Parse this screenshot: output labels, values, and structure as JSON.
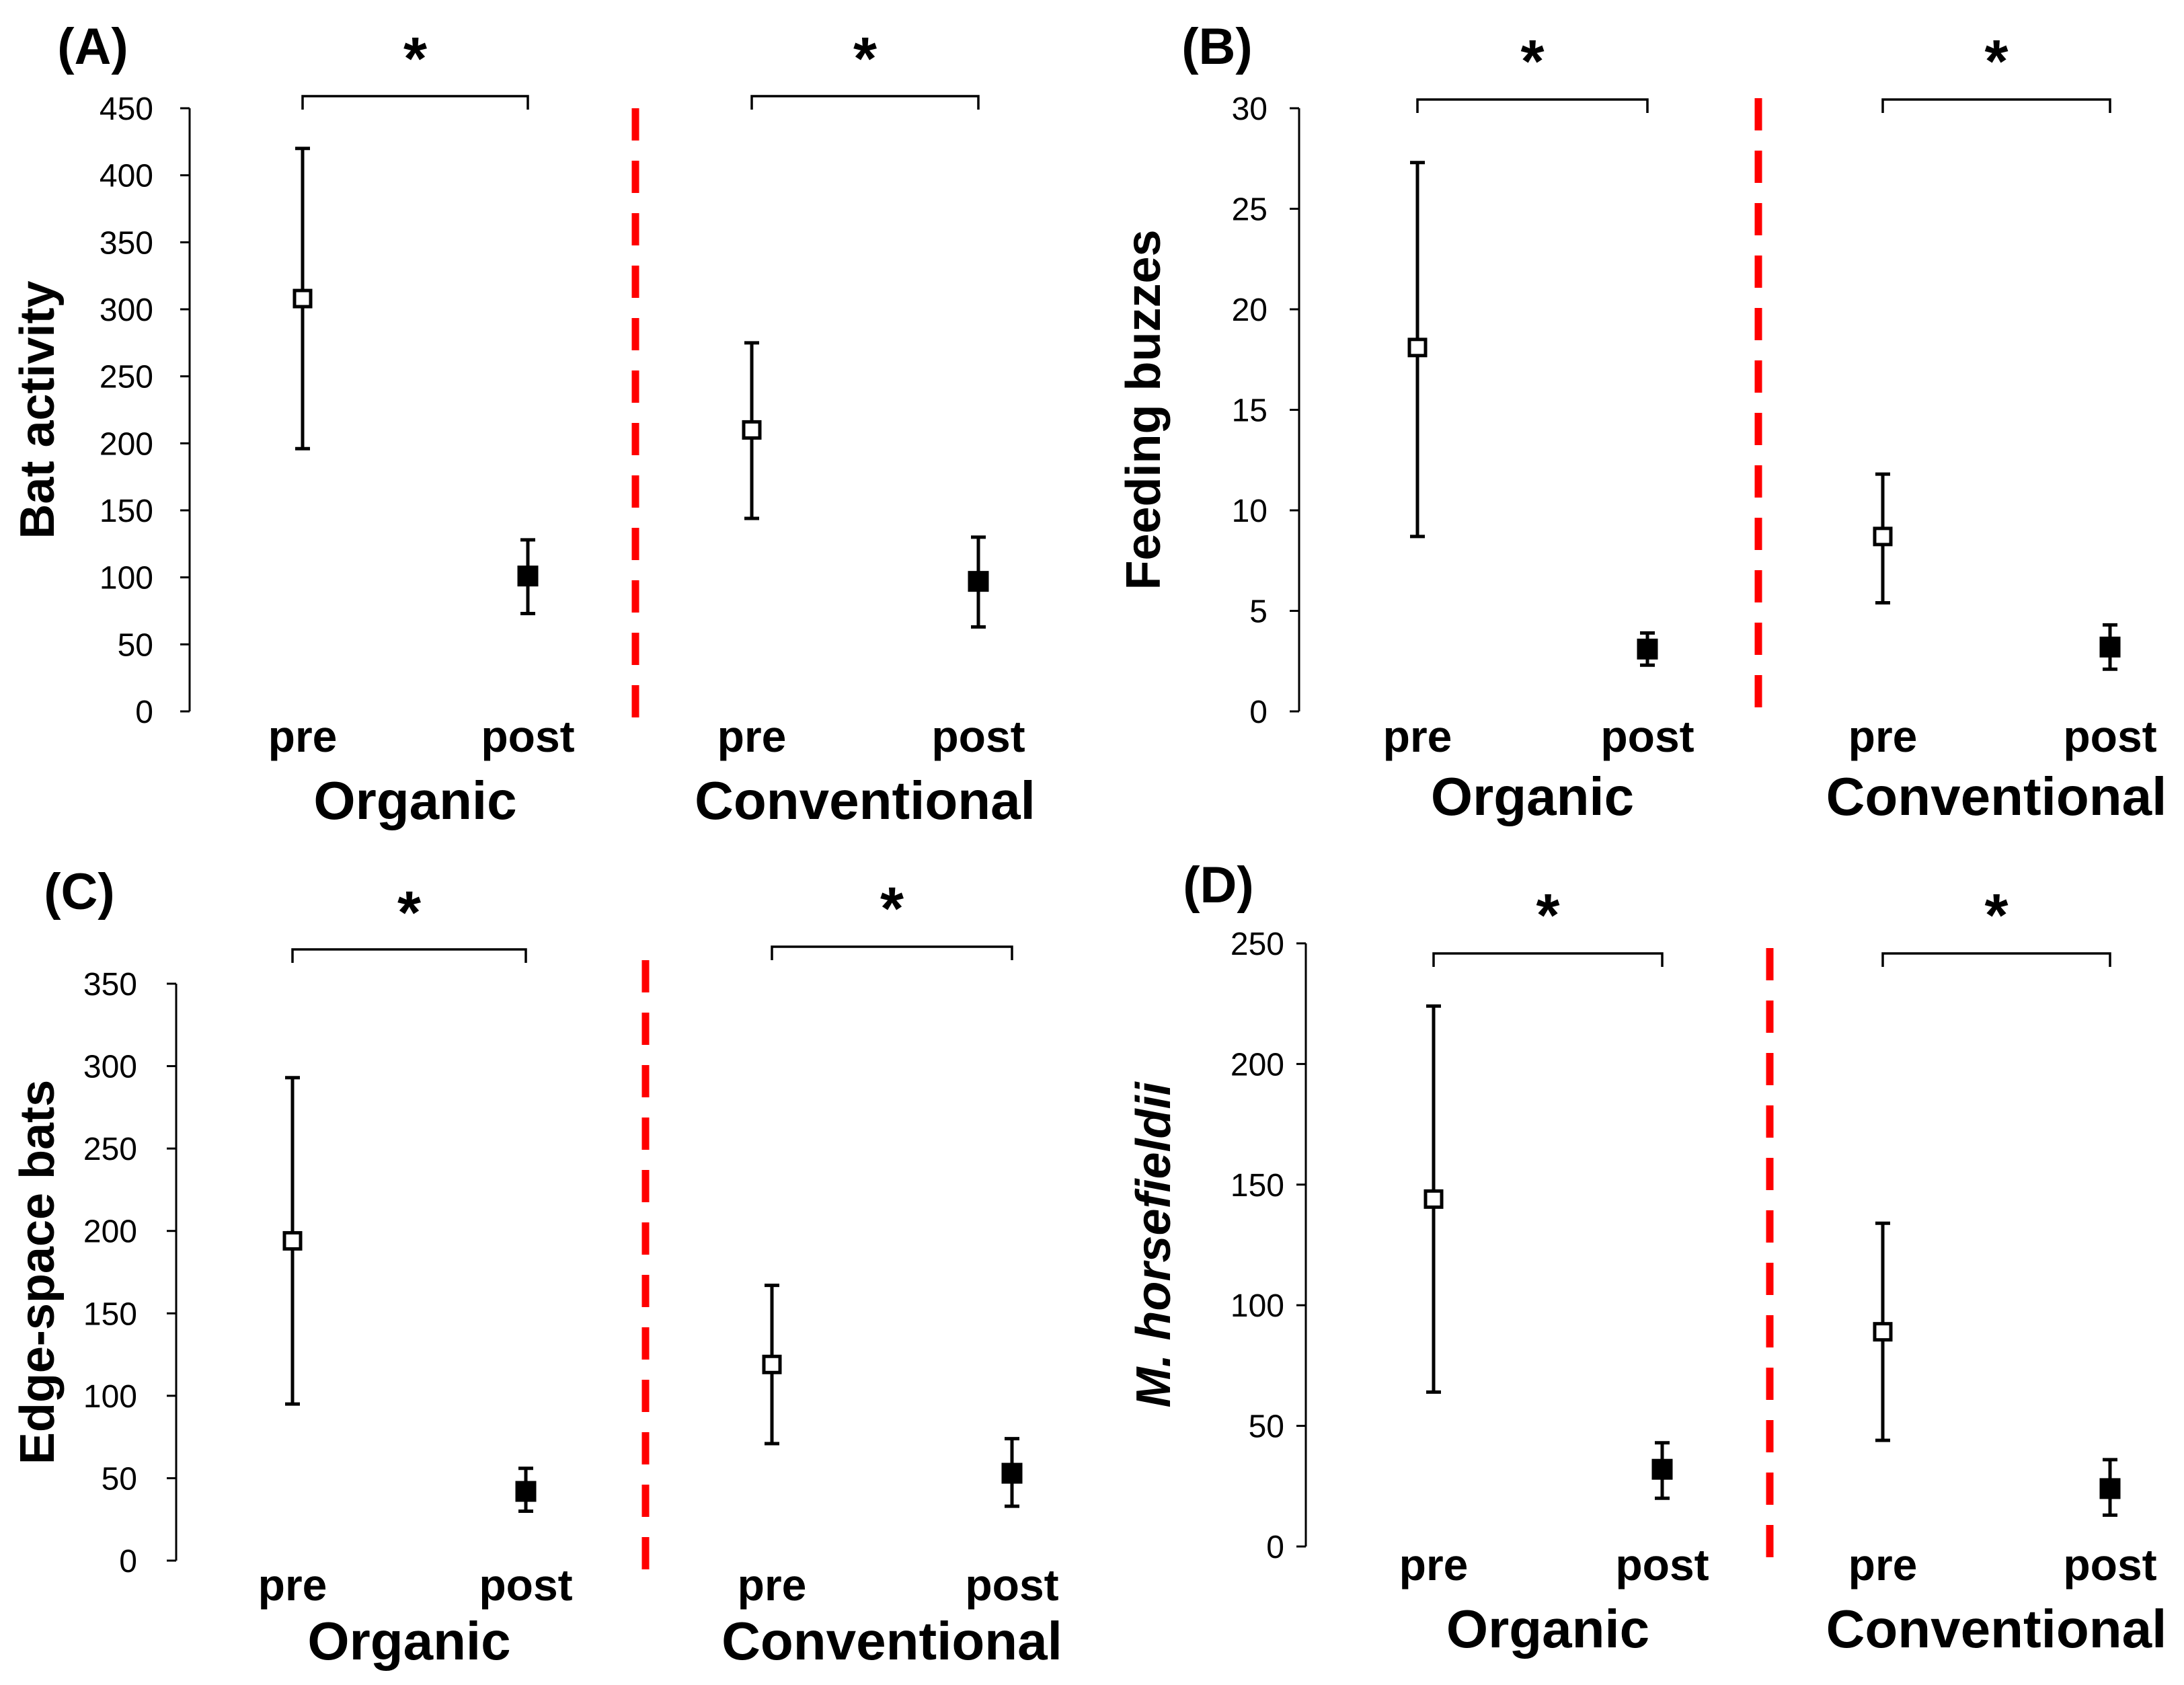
{
  "colors": {
    "ink": "#000000",
    "divider": "#ff0000",
    "pre_fill": "#ffffff",
    "post_fill": "#000000"
  },
  "chart_data": [
    {
      "panel": "(A)",
      "type": "scatter",
      "ylabel": "Bat activity",
      "ylim": [
        0,
        450
      ],
      "yticks": [
        0,
        50,
        100,
        150,
        200,
        250,
        300,
        350,
        400,
        450
      ],
      "groups": [
        {
          "name": "Organic",
          "significance": "*",
          "points": [
            {
              "x": "pre",
              "mean": 308,
              "lower": 196,
              "upper": 420,
              "marker": "open-square"
            },
            {
              "x": "post",
              "mean": 101,
              "lower": 73,
              "upper": 128,
              "marker": "filled-square"
            }
          ]
        },
        {
          "name": "Conventional",
          "significance": "*",
          "points": [
            {
              "x": "pre",
              "mean": 210,
              "lower": 144,
              "upper": 275,
              "marker": "open-square"
            },
            {
              "x": "post",
              "mean": 97,
              "lower": 63,
              "upper": 130,
              "marker": "filled-square"
            }
          ]
        }
      ]
    },
    {
      "panel": "(B)",
      "type": "scatter",
      "ylabel": "Feeding buzzes",
      "ylim": [
        0,
        30
      ],
      "yticks": [
        0,
        5,
        10,
        15,
        20,
        25,
        30
      ],
      "groups": [
        {
          "name": "Organic",
          "significance": "*",
          "points": [
            {
              "x": "pre",
              "mean": 18.1,
              "lower": 8.7,
              "upper": 27.3,
              "marker": "open-square"
            },
            {
              "x": "post",
              "mean": 3.1,
              "lower": 2.3,
              "upper": 3.9,
              "marker": "filled-square"
            }
          ]
        },
        {
          "name": "Conventional",
          "significance": "*",
          "points": [
            {
              "x": "pre",
              "mean": 8.7,
              "lower": 5.4,
              "upper": 11.8,
              "marker": "open-square"
            },
            {
              "x": "post",
              "mean": 3.2,
              "lower": 2.1,
              "upper": 4.3,
              "marker": "filled-square"
            }
          ]
        }
      ]
    },
    {
      "panel": "(C)",
      "type": "scatter",
      "ylabel": "Edge-space bats",
      "ylim": [
        0,
        350
      ],
      "yticks": [
        0,
        50,
        100,
        150,
        200,
        250,
        300,
        350
      ],
      "groups": [
        {
          "name": "Organic",
          "significance": "*",
          "points": [
            {
              "x": "pre",
              "mean": 194,
              "lower": 95,
              "upper": 293,
              "marker": "open-square"
            },
            {
              "x": "post",
              "mean": 42,
              "lower": 30,
              "upper": 56,
              "marker": "filled-square"
            }
          ]
        },
        {
          "name": "Conventional",
          "significance": "*",
          "points": [
            {
              "x": "pre",
              "mean": 119,
              "lower": 71,
              "upper": 167,
              "marker": "open-square"
            },
            {
              "x": "post",
              "mean": 53,
              "lower": 33,
              "upper": 74,
              "marker": "filled-square"
            }
          ]
        }
      ]
    },
    {
      "panel": "(D)",
      "type": "scatter",
      "ylabel": "M. horsefieldii",
      "ylabel_italic": true,
      "ylim": [
        0,
        250
      ],
      "yticks": [
        0,
        50,
        100,
        150,
        200,
        250
      ],
      "groups": [
        {
          "name": "Organic",
          "significance": "*",
          "points": [
            {
              "x": "pre",
              "mean": 144,
              "lower": 64,
              "upper": 224,
              "marker": "open-square"
            },
            {
              "x": "post",
              "mean": 32,
              "lower": 20,
              "upper": 43,
              "marker": "filled-square"
            }
          ]
        },
        {
          "name": "Conventional",
          "significance": "*",
          "points": [
            {
              "x": "pre",
              "mean": 89,
              "lower": 44,
              "upper": 134,
              "marker": "open-square"
            },
            {
              "x": "post",
              "mean": 24,
              "lower": 13,
              "upper": 36,
              "marker": "filled-square"
            }
          ]
        }
      ]
    }
  ]
}
